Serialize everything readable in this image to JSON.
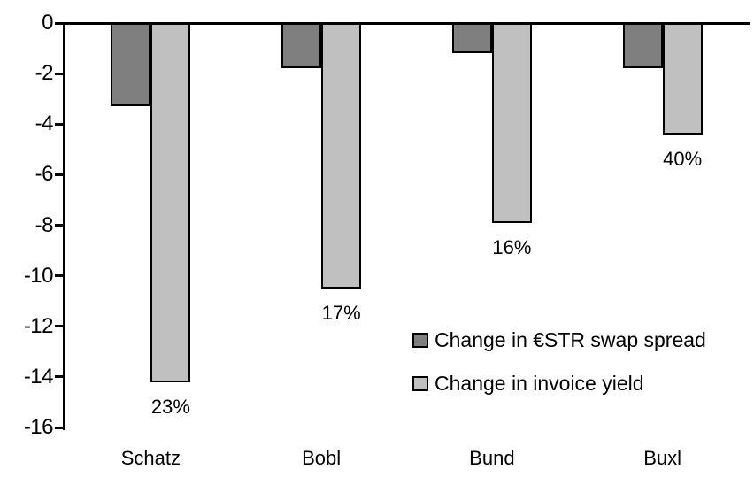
{
  "colors": {
    "background": "#ffffff",
    "axis": "#000000",
    "text": "#000000",
    "series_dark": "#7f7f7f",
    "series_light": "#c0c0c0",
    "bar_border": "#000000"
  },
  "chart_data": {
    "type": "bar",
    "title": "",
    "xlabel": "",
    "ylabel": "",
    "categories": [
      "Schatz",
      "Bobl",
      "Bund",
      "Buxl"
    ],
    "series": [
      {
        "name": "Change in €STR swap spread",
        "color": "#7f7f7f",
        "values": [
          -3.3,
          -1.8,
          -1.2,
          -1.8
        ]
      },
      {
        "name": "Change in invoice yield",
        "color": "#c0c0c0",
        "values": [
          -14.2,
          -10.5,
          -7.9,
          -4.4
        ],
        "point_labels": [
          "23%",
          "17%",
          "16%",
          "40%"
        ]
      }
    ],
    "ylim": [
      -16,
      0
    ],
    "yticks": [
      0,
      -2,
      -4,
      -6,
      -8,
      -10,
      -12,
      -14,
      -16
    ],
    "ytick_labels": [
      "0",
      "-2",
      "-4",
      "-6",
      "-8",
      "-10",
      "-12",
      "-14",
      "-16"
    ],
    "grid": false,
    "legend_position": "inside-right-middle"
  }
}
